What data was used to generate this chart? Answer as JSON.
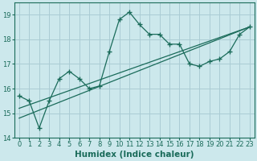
{
  "xlabel": "Humidex (Indice chaleur)",
  "bg_color": "#cce8ec",
  "grid_color": "#aaccd4",
  "line_color": "#1a6b5a",
  "x_data": [
    0,
    1,
    2,
    3,
    4,
    5,
    6,
    7,
    8,
    9,
    10,
    11,
    12,
    13,
    14,
    15,
    16,
    17,
    18,
    19,
    20,
    21,
    22,
    23
  ],
  "y_data": [
    15.7,
    15.5,
    14.4,
    15.5,
    16.4,
    16.7,
    16.4,
    16.0,
    16.1,
    17.5,
    18.8,
    19.1,
    18.6,
    18.2,
    18.2,
    17.8,
    17.8,
    17.0,
    16.9,
    17.1,
    17.2,
    17.5,
    18.2,
    18.5
  ],
  "trend1_x": [
    0,
    23
  ],
  "trend1_y": [
    14.8,
    18.5
  ],
  "trend2_x": [
    0,
    23
  ],
  "trend2_y": [
    15.2,
    18.5
  ],
  "ylim": [
    14.0,
    19.5
  ],
  "xlim": [
    -0.5,
    23.5
  ],
  "yticks": [
    14,
    15,
    16,
    17,
    18,
    19
  ],
  "xticks": [
    0,
    1,
    2,
    3,
    4,
    5,
    6,
    7,
    8,
    9,
    10,
    11,
    12,
    13,
    14,
    15,
    16,
    17,
    18,
    19,
    20,
    21,
    22,
    23
  ],
  "tick_fontsize": 6.0,
  "xlabel_fontsize": 7.5
}
